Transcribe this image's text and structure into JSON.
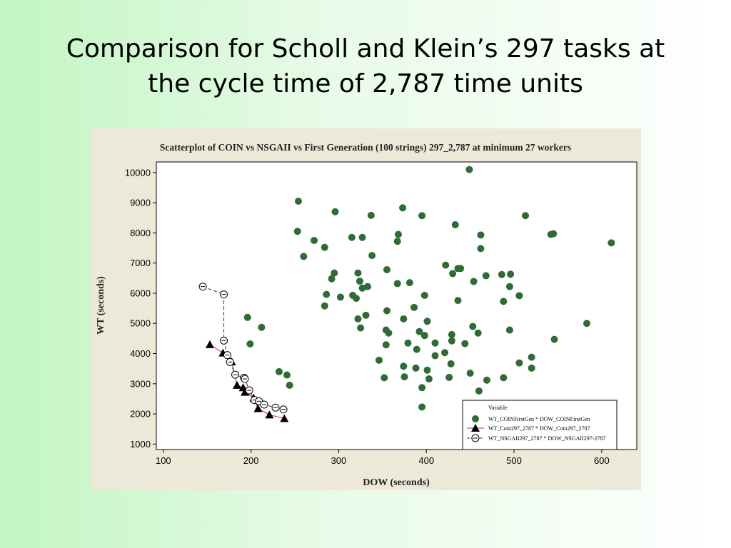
{
  "slide": {
    "title_line1": "Comparison for Scholl and Klein’s 297 tasks at",
    "title_line2": "the cycle time of 2,787 time units"
  },
  "chart_data": {
    "type": "scatter",
    "title": "Scatterplot of COIN vs NSGAII vs First Generation (100 strings) 297_2,787 at minimum 27 workers",
    "xlabel": "DOW  (seconds)",
    "ylabel": "WT  (seconds)",
    "xlim": [
      92,
      640
    ],
    "ylim": [
      820,
      10350
    ],
    "xticks": [
      100,
      200,
      300,
      400,
      500,
      600
    ],
    "yticks": [
      1000,
      2000,
      3000,
      4000,
      5000,
      6000,
      7000,
      8000,
      9000,
      10000
    ],
    "grid": false,
    "legend": {
      "title": "Variable",
      "position": "bottom-right"
    },
    "series": [
      {
        "name": "WT_COINFirstGen * DOW_COINFirstGen",
        "marker": "filled-circle",
        "color": "#2f6b34",
        "connect": false,
        "points": [
          [
            449,
            10100
          ],
          [
            254,
            9050
          ],
          [
            337,
            8580
          ],
          [
            373,
            8830
          ],
          [
            296,
            8700
          ],
          [
            395,
            8570
          ],
          [
            513,
            8570
          ],
          [
            433,
            8270
          ],
          [
            253,
            8050
          ],
          [
            315,
            7850
          ],
          [
            327,
            7850
          ],
          [
            368,
            7950
          ],
          [
            462,
            7930
          ],
          [
            542,
            7950
          ],
          [
            545,
            7970
          ],
          [
            611,
            7670
          ],
          [
            272,
            7750
          ],
          [
            284,
            7520
          ],
          [
            367,
            7720
          ],
          [
            462,
            7480
          ],
          [
            260,
            7220
          ],
          [
            338,
            7250
          ],
          [
            422,
            6930
          ],
          [
            436,
            6820
          ],
          [
            439,
            6820
          ],
          [
            355,
            6780
          ],
          [
            295,
            6670
          ],
          [
            322,
            6670
          ],
          [
            430,
            6650
          ],
          [
            468,
            6580
          ],
          [
            486,
            6620
          ],
          [
            496,
            6630
          ],
          [
            292,
            6480
          ],
          [
            324,
            6400
          ],
          [
            367,
            6320
          ],
          [
            381,
            6350
          ],
          [
            454,
            6390
          ],
          [
            327,
            6170
          ],
          [
            333,
            6220
          ],
          [
            495,
            6220
          ],
          [
            286,
            5960
          ],
          [
            302,
            5870
          ],
          [
            316,
            5930
          ],
          [
            320,
            5830
          ],
          [
            398,
            5930
          ],
          [
            506,
            5920
          ],
          [
            436,
            5760
          ],
          [
            284,
            5580
          ],
          [
            331,
            5270
          ],
          [
            322,
            5150
          ],
          [
            355,
            5420
          ],
          [
            386,
            5530
          ],
          [
            488,
            5730
          ],
          [
            196,
            5200
          ],
          [
            212,
            4870
          ],
          [
            325,
            4850
          ],
          [
            354,
            4780
          ],
          [
            374,
            5150
          ],
          [
            392,
            4730
          ],
          [
            401,
            5070
          ],
          [
            453,
            4900
          ],
          [
            583,
            5000
          ],
          [
            357,
            4680
          ],
          [
            398,
            4600
          ],
          [
            429,
            4630
          ],
          [
            459,
            4680
          ],
          [
            495,
            4780
          ],
          [
            199,
            4320
          ],
          [
            354,
            4290
          ],
          [
            379,
            4350
          ],
          [
            389,
            4140
          ],
          [
            410,
            4350
          ],
          [
            429,
            4420
          ],
          [
            444,
            4330
          ],
          [
            546,
            4470
          ],
          [
            421,
            4030
          ],
          [
            410,
            3930
          ],
          [
            520,
            3880
          ],
          [
            346,
            3780
          ],
          [
            428,
            3660
          ],
          [
            506,
            3690
          ],
          [
            374,
            3580
          ],
          [
            232,
            3400
          ],
          [
            241,
            3290
          ],
          [
            352,
            3200
          ],
          [
            375,
            3230
          ],
          [
            388,
            3520
          ],
          [
            401,
            3450
          ],
          [
            450,
            3350
          ],
          [
            520,
            3520
          ],
          [
            403,
            3160
          ],
          [
            426,
            3210
          ],
          [
            469,
            3120
          ],
          [
            488,
            3200
          ],
          [
            244,
            2950
          ],
          [
            395,
            2870
          ],
          [
            460,
            2760
          ],
          [
            395,
            2230
          ]
        ]
      },
      {
        "name": "WT_Coin297_2787 * DOW_Coin297_2787",
        "marker": "filled-triangle",
        "color": "#000000",
        "line_color": "#dd2222",
        "connect": true,
        "points": [
          [
            153,
            4300
          ],
          [
            168,
            4020
          ],
          [
            178,
            3730
          ],
          [
            184,
            2950
          ],
          [
            191,
            2870
          ],
          [
            193,
            2720
          ],
          [
            203,
            2530
          ],
          [
            208,
            2180
          ],
          [
            221,
            1970
          ],
          [
            238,
            1850
          ]
        ]
      },
      {
        "name": "WT_NSGAII297_2787 * DOW_NSGAII297-2787",
        "marker": "open-circle-dash",
        "color": "#000000",
        "line_color": "#333333",
        "connect": true,
        "points": [
          [
            145,
            6220
          ],
          [
            169,
            5960
          ],
          [
            169,
            4430
          ],
          [
            173,
            3950
          ],
          [
            176,
            3720
          ],
          [
            182,
            3300
          ],
          [
            192,
            3200
          ],
          [
            193,
            3160
          ],
          [
            198,
            2780
          ],
          [
            204,
            2460
          ],
          [
            209,
            2420
          ],
          [
            215,
            2310
          ],
          [
            228,
            2210
          ],
          [
            237,
            2150
          ]
        ]
      }
    ]
  }
}
